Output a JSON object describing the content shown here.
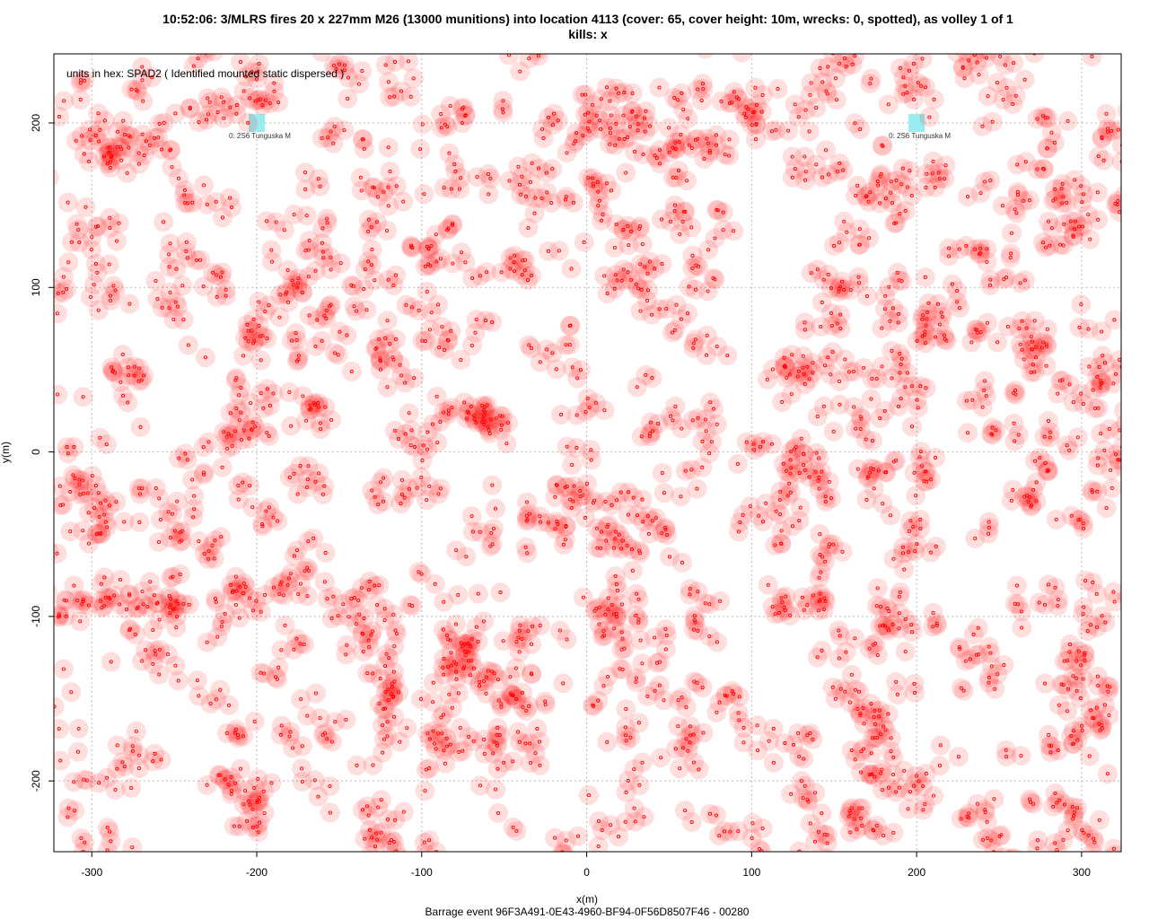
{
  "title_line1": "10:52:06: 3/MLRS fires 20 x 227mm M26 (13000 munitions) into location 4113 (cover: 65, cover height: 10m, wrecks: 0, spotted), as volley 1 of 1",
  "title_line2": "kills:  x",
  "xlabel": "x(m)",
  "ylabel": "y(m)",
  "footer": "Barrage event 96F3A491-0E43-4960-BF94-0F56D8507F46 - 00280",
  "chart_data": {
    "type": "scatter",
    "xlim": [
      -323,
      324
    ],
    "ylim": [
      -243,
      242
    ],
    "x_ticks": [
      -300,
      -200,
      -100,
      0,
      100,
      200,
      300
    ],
    "y_ticks": [
      -200,
      -100,
      0,
      100,
      200
    ],
    "grid": true,
    "munitions": 13000,
    "impact_color": "#ff0000",
    "blast_fill": "rgba(255,0,0,0.13)",
    "unit_color": "#99ecf0",
    "hex_units_text": "units in hex:  SPAD2 ( Identified mounted static dispersed )",
    "units": [
      {
        "label": "0: 2S6 Tunguska M",
        "x": -200,
        "y": 200
      },
      {
        "label": "0: 2S6 Tunguska M",
        "x": 200,
        "y": 200
      }
    ]
  }
}
